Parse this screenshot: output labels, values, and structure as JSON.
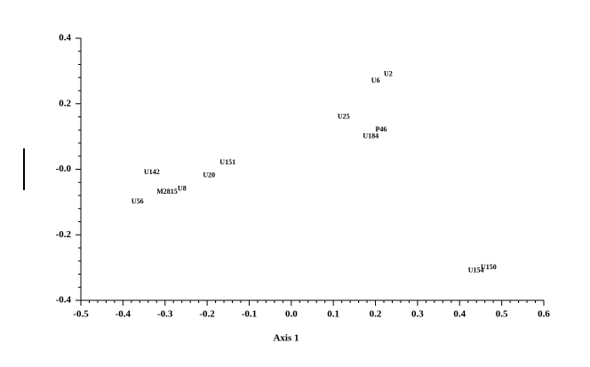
{
  "chart_data": {
    "type": "scatter",
    "x_label": "Axis 1",
    "labels": [
      "U2",
      "U6",
      "U25",
      "P46",
      "U184",
      "U151",
      "U20",
      "U142",
      "U8",
      "M2815",
      "U56",
      "U150",
      "U154"
    ],
    "x": [
      0.22,
      0.19,
      0.11,
      0.2,
      0.17,
      -0.17,
      -0.21,
      -0.35,
      -0.27,
      -0.32,
      -0.38,
      0.45,
      0.42
    ],
    "y": [
      0.29,
      0.27,
      0.16,
      0.12,
      0.1,
      0.02,
      -0.02,
      -0.01,
      -0.06,
      -0.07,
      -0.1,
      -0.3,
      -0.31
    ],
    "xlim": [
      -0.5,
      0.6
    ],
    "ylim": [
      -0.4,
      0.4
    ],
    "xticks": [
      -0.5,
      -0.4,
      -0.3,
      -0.2,
      -0.1,
      {
        "value": 0,
        "label": "0.0"
      },
      0.1,
      0.2,
      0.3,
      0.4,
      0.5,
      0.6
    ],
    "yticks": [
      -0.4,
      -0.2,
      {
        "value": 0,
        "label": "-0.0"
      },
      0.2,
      0.4
    ]
  }
}
